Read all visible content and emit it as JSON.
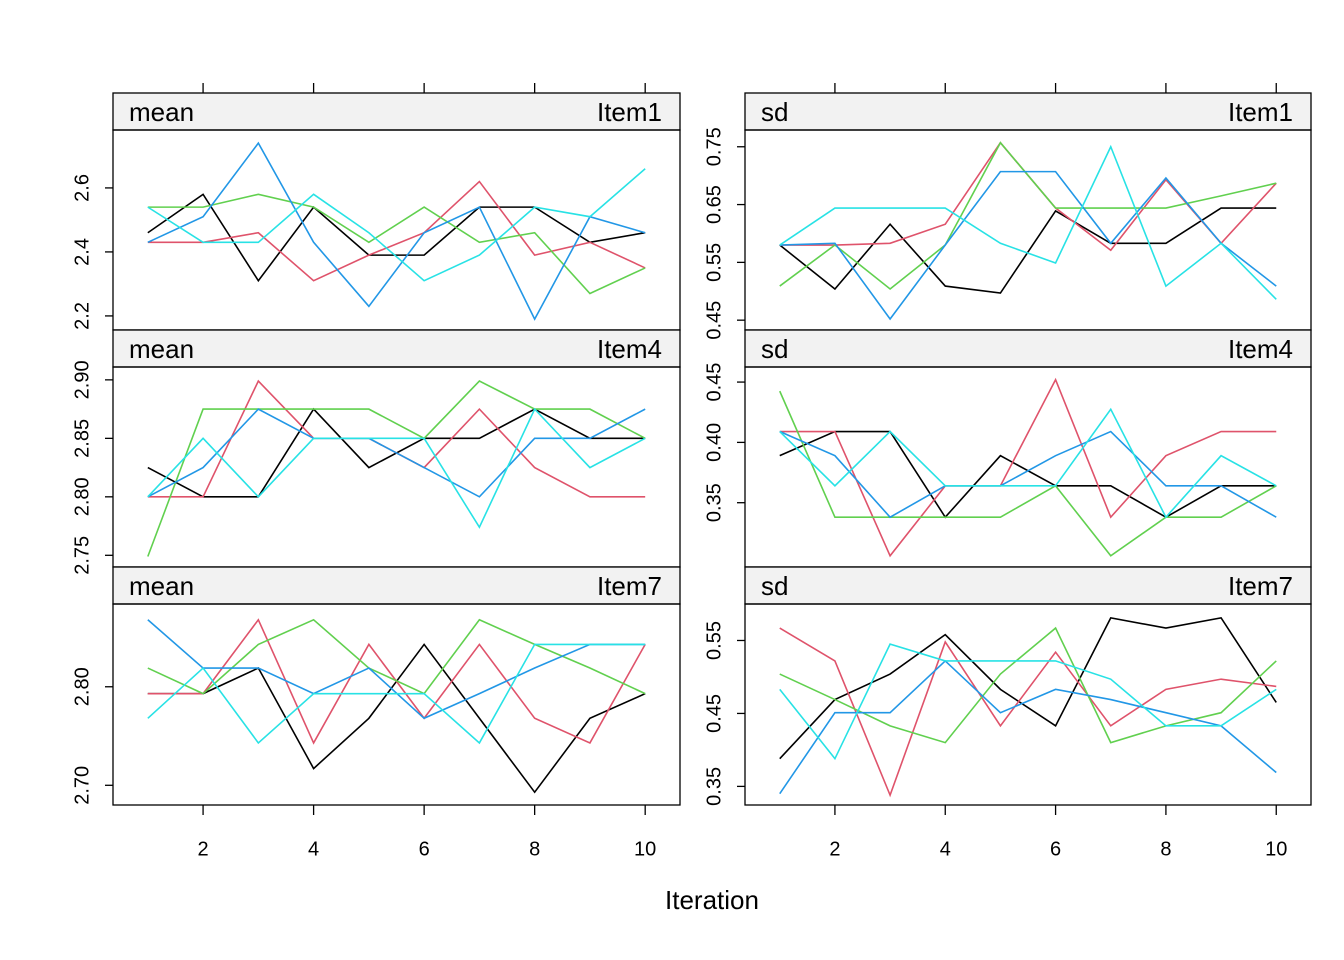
{
  "xlabel": "Iteration",
  "chart_data": [
    {
      "type": "line",
      "strip_left": "mean",
      "strip_right": "Item1",
      "x": [
        1,
        2,
        3,
        4,
        5,
        6,
        7,
        8,
        9,
        10
      ],
      "xlim": [
        0.37,
        10.63
      ],
      "xticks": [
        2,
        4,
        6,
        8,
        10
      ],
      "ylim": [
        2.156,
        2.781
      ],
      "yticks": [
        2.2,
        2.4,
        2.6
      ],
      "series": [
        {
          "color": "#000000",
          "values": [
            2.46,
            2.58,
            2.31,
            2.54,
            2.39,
            2.39,
            2.54,
            2.54,
            2.43,
            2.46
          ]
        },
        {
          "color": "#DF536B",
          "values": [
            2.43,
            2.43,
            2.46,
            2.31,
            2.39,
            2.46,
            2.62,
            2.39,
            2.43,
            2.35
          ]
        },
        {
          "color": "#61D04F",
          "values": [
            2.54,
            2.54,
            2.58,
            2.54,
            2.43,
            2.54,
            2.43,
            2.46,
            2.27,
            2.35
          ]
        },
        {
          "color": "#2297E6",
          "values": [
            2.43,
            2.51,
            2.74,
            2.43,
            2.23,
            2.46,
            2.54,
            2.19,
            2.51,
            2.46
          ]
        },
        {
          "color": "#28E2E5",
          "values": [
            2.54,
            2.43,
            2.43,
            2.58,
            2.46,
            2.31,
            2.39,
            2.54,
            2.51,
            2.66
          ]
        }
      ]
    },
    {
      "type": "line",
      "strip_left": "sd",
      "strip_right": "Item1",
      "x": [
        1,
        2,
        3,
        4,
        5,
        6,
        7,
        8,
        9,
        10
      ],
      "xlim": [
        0.37,
        10.63
      ],
      "xticks": [
        2,
        4,
        6,
        8,
        10
      ],
      "ylim": [
        0.433,
        0.779
      ],
      "yticks": [
        0.45,
        0.55,
        0.65,
        0.75
      ],
      "series": [
        {
          "color": "#000000",
          "values": [
            0.58,
            0.504,
            0.616,
            0.509,
            0.497,
            0.639,
            0.583,
            0.583,
            0.644,
            0.644
          ]
        },
        {
          "color": "#DF536B",
          "values": [
            0.58,
            0.58,
            0.583,
            0.616,
            0.757,
            0.644,
            0.571,
            0.693,
            0.583,
            0.687
          ]
        },
        {
          "color": "#61D04F",
          "values": [
            0.509,
            0.58,
            0.504,
            0.58,
            0.757,
            0.644,
            0.644,
            0.644,
            0.665,
            0.687
          ]
        },
        {
          "color": "#2297E6",
          "values": [
            0.58,
            0.583,
            0.452,
            0.58,
            0.707,
            0.707,
            0.583,
            0.696,
            0.583,
            0.509
          ]
        },
        {
          "color": "#28E2E5",
          "values": [
            0.58,
            0.644,
            0.644,
            0.644,
            0.583,
            0.549,
            0.75,
            0.509,
            0.583,
            0.486
          ]
        }
      ]
    },
    {
      "type": "line",
      "strip_left": "mean",
      "strip_right": "Item4",
      "x": [
        1,
        2,
        3,
        4,
        5,
        6,
        7,
        8,
        9,
        10
      ],
      "xlim": [
        0.37,
        10.63
      ],
      "ylim": [
        2.74,
        2.911
      ],
      "yticks": [
        2.75,
        {
          "value": 2.8,
          "label": "2.80"
        },
        2.85,
        {
          "value": 2.9,
          "label": "2.90"
        }
      ],
      "series": [
        {
          "color": "#000000",
          "values": [
            2.825,
            2.8,
            2.8,
            2.875,
            2.825,
            2.85,
            2.85,
            2.875,
            2.85,
            2.85
          ]
        },
        {
          "color": "#DF536B",
          "values": [
            2.8,
            2.8,
            2.899,
            2.85,
            2.85,
            2.825,
            2.875,
            2.825,
            2.8,
            2.8
          ]
        },
        {
          "color": "#61D04F",
          "values": [
            2.749,
            2.875,
            2.875,
            2.875,
            2.875,
            2.85,
            2.899,
            2.875,
            2.875,
            2.85
          ]
        },
        {
          "color": "#2297E6",
          "values": [
            2.8,
            2.825,
            2.875,
            2.85,
            2.85,
            2.825,
            2.8,
            2.85,
            2.85,
            2.875
          ]
        },
        {
          "color": "#28E2E5",
          "values": [
            2.8,
            2.85,
            2.8,
            2.85,
            2.85,
            2.85,
            2.774,
            2.875,
            2.825,
            2.85
          ]
        }
      ]
    },
    {
      "type": "line",
      "strip_left": "sd",
      "strip_right": "Item4",
      "x": [
        1,
        2,
        3,
        4,
        5,
        6,
        7,
        8,
        9,
        10
      ],
      "xlim": [
        0.37,
        10.63
      ],
      "ylim": [
        0.2967,
        0.4625
      ],
      "yticks": [
        0.35,
        {
          "value": 0.4,
          "label": "0.40"
        },
        0.45
      ],
      "series": [
        {
          "color": "#000000",
          "values": [
            0.389,
            0.409,
            0.409,
            0.338,
            0.389,
            0.364,
            0.364,
            0.338,
            0.364,
            0.364
          ]
        },
        {
          "color": "#DF536B",
          "values": [
            0.409,
            0.409,
            0.306,
            0.364,
            0.364,
            0.452,
            0.338,
            0.389,
            0.409,
            0.409
          ]
        },
        {
          "color": "#61D04F",
          "values": [
            0.4425,
            0.338,
            0.338,
            0.338,
            0.338,
            0.364,
            0.306,
            0.338,
            0.338,
            0.364
          ]
        },
        {
          "color": "#2297E6",
          "values": [
            0.409,
            0.389,
            0.338,
            0.364,
            0.364,
            0.389,
            0.409,
            0.364,
            0.364,
            0.338
          ]
        },
        {
          "color": "#28E2E5",
          "values": [
            0.409,
            0.364,
            0.409,
            0.364,
            0.364,
            0.364,
            0.4275,
            0.338,
            0.389,
            0.364
          ]
        }
      ]
    },
    {
      "type": "line",
      "strip_left": "mean",
      "strip_right": "Item7",
      "x": [
        1,
        2,
        3,
        4,
        5,
        6,
        7,
        8,
        9,
        10
      ],
      "xlim": [
        0.37,
        10.63
      ],
      "xticks": [
        2,
        4,
        6,
        8,
        10
      ],
      "ylim": [
        2.68,
        2.884
      ],
      "yticks": [
        {
          "value": 2.7,
          "label": "2.70"
        },
        {
          "value": 2.8,
          "label": "2.80"
        }
      ],
      "series": [
        {
          "color": "#000000",
          "values": [
            2.793,
            2.793,
            2.819,
            2.717,
            2.768,
            2.843,
            2.768,
            2.693,
            2.768,
            2.793
          ]
        },
        {
          "color": "#DF536B",
          "values": [
            2.793,
            2.793,
            2.868,
            2.743,
            2.843,
            2.768,
            2.843,
            2.768,
            2.743,
            2.843
          ]
        },
        {
          "color": "#61D04F",
          "values": [
            2.819,
            2.793,
            2.843,
            2.868,
            2.819,
            2.793,
            2.868,
            2.843,
            2.819,
            2.793
          ]
        },
        {
          "color": "#2297E6",
          "values": [
            2.868,
            2.819,
            2.819,
            2.793,
            2.819,
            2.768,
            2.793,
            2.819,
            2.843,
            2.843
          ]
        },
        {
          "color": "#28E2E5",
          "values": [
            2.768,
            2.819,
            2.743,
            2.793,
            2.793,
            2.793,
            2.743,
            2.843,
            2.843,
            2.843
          ]
        }
      ]
    },
    {
      "type": "line",
      "strip_left": "sd",
      "strip_right": "Item7",
      "x": [
        1,
        2,
        3,
        4,
        5,
        6,
        7,
        8,
        9,
        10
      ],
      "xlim": [
        0.37,
        10.63
      ],
      "xticks": [
        2,
        4,
        6,
        8,
        10
      ],
      "ylim": [
        0.3245,
        0.6
      ],
      "yticks": [
        0.35,
        0.45,
        0.55
      ],
      "series": [
        {
          "color": "#000000",
          "values": [
            0.388,
            0.469,
            0.504,
            0.558,
            0.483,
            0.433,
            0.581,
            0.567,
            0.581,
            0.465
          ]
        },
        {
          "color": "#DF536B",
          "values": [
            0.567,
            0.522,
            0.338,
            0.548,
            0.433,
            0.534,
            0.433,
            0.483,
            0.497,
            0.487
          ]
        },
        {
          "color": "#61D04F",
          "values": [
            0.504,
            0.469,
            0.433,
            0.41,
            0.504,
            0.567,
            0.41,
            0.433,
            0.451,
            0.522
          ]
        },
        {
          "color": "#2297E6",
          "values": [
            0.34,
            0.451,
            0.451,
            0.522,
            0.451,
            0.483,
            0.469,
            0.451,
            0.433,
            0.369
          ]
        },
        {
          "color": "#28E2E5",
          "values": [
            0.483,
            0.388,
            0.545,
            0.522,
            0.522,
            0.522,
            0.497,
            0.433,
            0.433,
            0.483
          ]
        }
      ]
    }
  ]
}
